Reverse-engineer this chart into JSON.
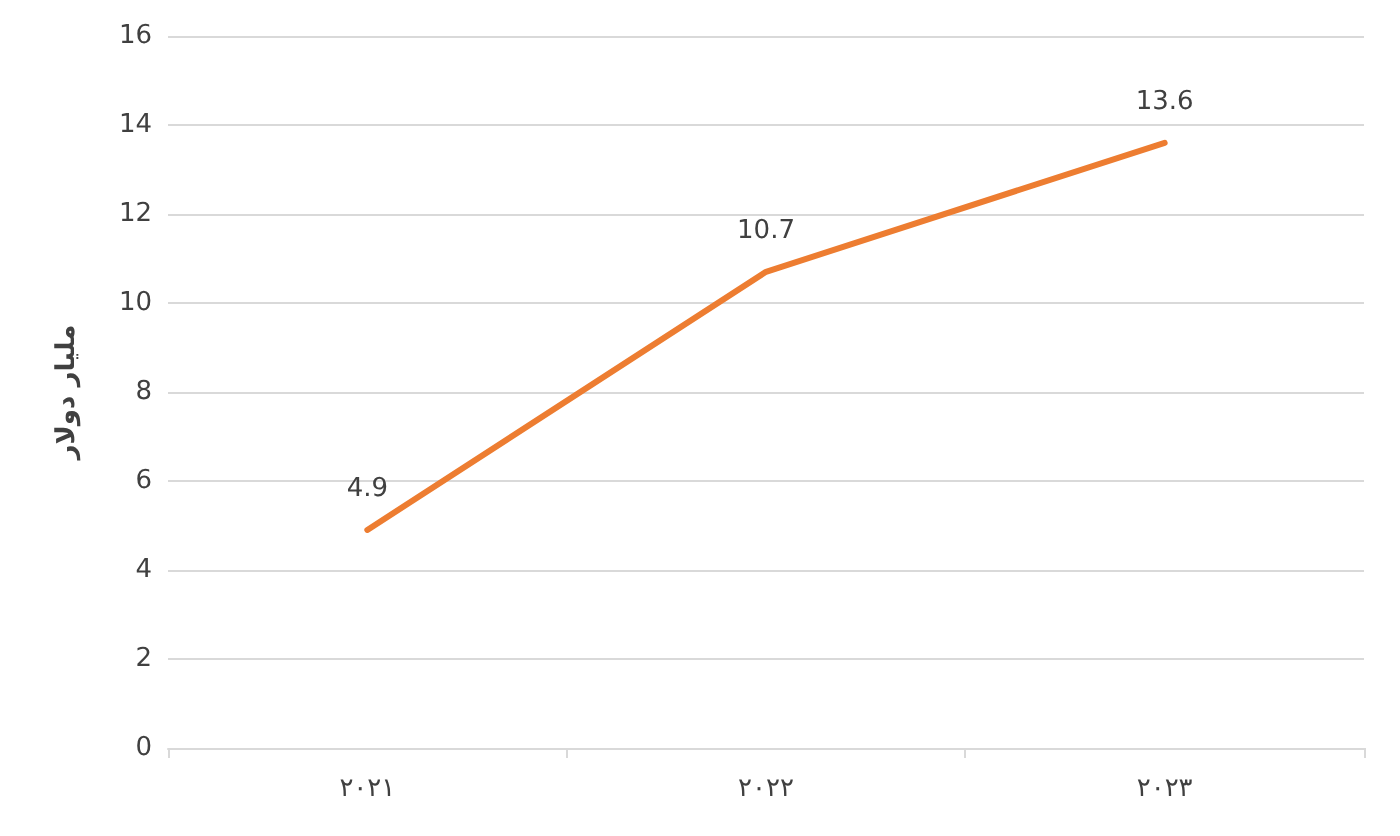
{
  "chart_data": {
    "type": "line",
    "ylabel": "مليار دولار",
    "categories": [
      "٢٠٢١",
      "٢٠٢٢",
      "٢٠٢٣"
    ],
    "series": [
      {
        "color": "#ed7d31",
        "values": [
          4.9,
          10.7,
          13.6
        ]
      }
    ],
    "ylim": [
      0,
      16
    ],
    "yticks": [
      0,
      2,
      4,
      6,
      8,
      10,
      12,
      14,
      16
    ],
    "grid": "y",
    "data_labels": true,
    "marker": "none",
    "line_style": "solid"
  }
}
